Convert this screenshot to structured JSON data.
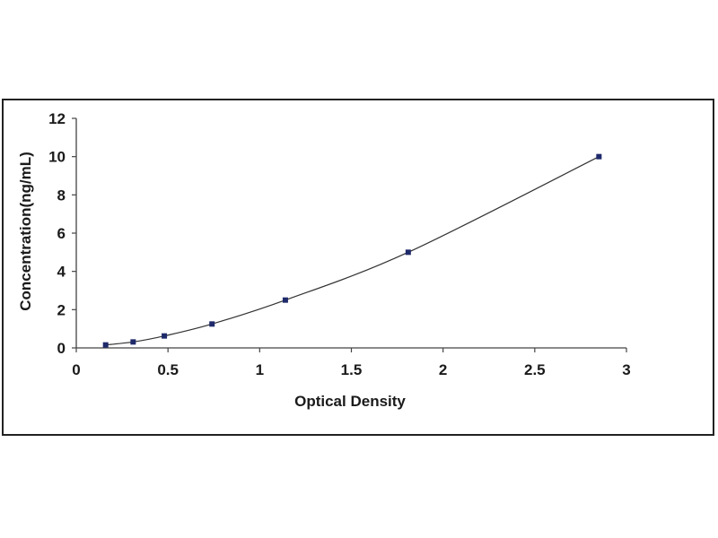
{
  "chart_data": {
    "type": "scatter",
    "xlabel": "Optical Density",
    "ylabel": "Concentration(ng/mL)",
    "xlim": [
      0,
      3
    ],
    "ylim": [
      0,
      12
    ],
    "x_ticks": [
      0,
      0.5,
      1,
      1.5,
      2,
      2.5,
      3
    ],
    "x_tick_labels": [
      "0",
      "0.5",
      "1",
      "1.5",
      "2",
      "2.5",
      "3"
    ],
    "y_ticks": [
      0,
      2,
      4,
      6,
      8,
      10,
      12
    ],
    "y_tick_labels": [
      "0",
      "2",
      "4",
      "6",
      "8",
      "10",
      "12"
    ],
    "grid": false,
    "legend": "none",
    "trendline": "smooth curve through points",
    "series": [
      {
        "x": [
          0.16,
          0.31,
          0.48,
          0.74,
          1.14,
          1.81,
          2.85
        ],
        "y": [
          0.156,
          0.312,
          0.625,
          1.25,
          2.5,
          5,
          10
        ]
      }
    ],
    "colors": {
      "marker": "#1f2a6b",
      "line": "#333333",
      "axis": "#444444"
    }
  }
}
